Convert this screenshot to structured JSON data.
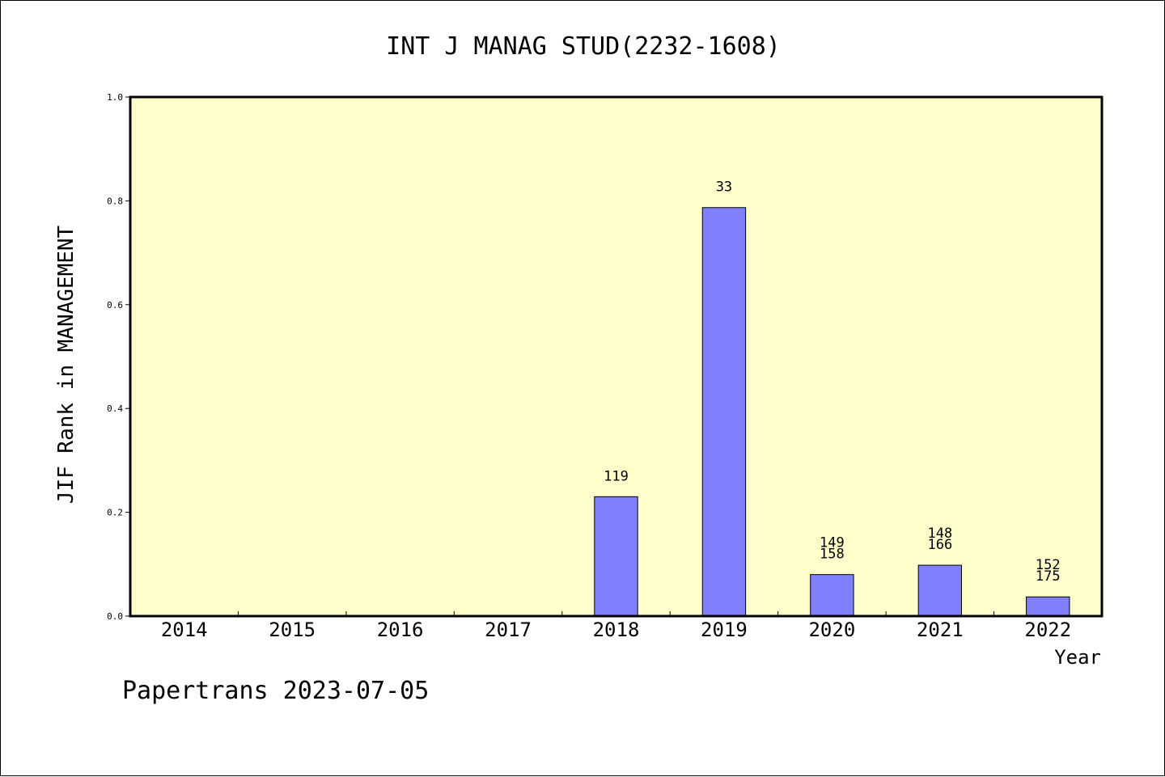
{
  "chart_data": {
    "type": "bar",
    "title": "INT J MANAG STUD(2232-1608)",
    "xlabel": "Year",
    "ylabel": "JIF Rank in MANAGEMENT",
    "categories": [
      "2014",
      "2015",
      "2016",
      "2017",
      "2018",
      "2019",
      "2020",
      "2021",
      "2022"
    ],
    "values": [
      0,
      0,
      0,
      0,
      0.23,
      0.787,
      0.08,
      0.098,
      0.037
    ],
    "data_labels": [
      [],
      [],
      [],
      [],
      [
        "119"
      ],
      [
        "33"
      ],
      [
        "149",
        "158"
      ],
      [
        "148",
        "166"
      ],
      [
        "152",
        "175"
      ]
    ],
    "ylim": [
      0,
      1.0
    ],
    "yticks": [
      "0.0",
      "0.2",
      "0.4",
      "0.6",
      "0.8",
      "1.0"
    ],
    "ytick_values": [
      0,
      0.2,
      0.4,
      0.6,
      0.8,
      1.0
    ],
    "grid": false,
    "legend": "none",
    "colors": {
      "plot_bg": "#ffffcc",
      "bar": "#8080ff",
      "axis": "#000000"
    }
  },
  "footer": "Papertrans 2023-07-05"
}
